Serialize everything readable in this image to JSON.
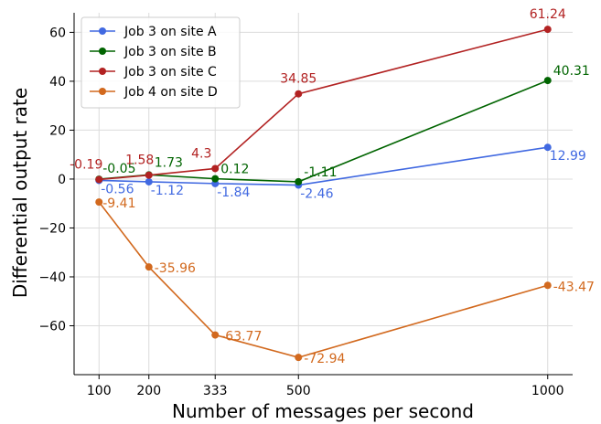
{
  "chart_data": {
    "type": "line",
    "title": "",
    "xlabel": "Number of messages per second",
    "ylabel": "Differential output rate",
    "x": [
      100,
      200,
      333,
      500,
      1000
    ],
    "x_tick_labels": [
      "100",
      "200",
      "333",
      "500",
      "1000"
    ],
    "xlim": [
      50,
      1050
    ],
    "ylim": [
      -80,
      68
    ],
    "y_ticks": [
      -60,
      -40,
      -20,
      0,
      20,
      40,
      60
    ],
    "y_tick_labels": [
      "−60",
      "−40",
      "−20",
      "0",
      "20",
      "40",
      "60"
    ],
    "grid": true,
    "legend_position": "top-left",
    "series": [
      {
        "name": "Job 3 on site A",
        "color": "#4169e1",
        "values": [
          -0.56,
          -1.12,
          -1.84,
          -2.46,
          12.99
        ],
        "labels": [
          "-0.56",
          "-1.12",
          "-1.84",
          "-2.46",
          "12.99"
        ]
      },
      {
        "name": "Job 3 on site B",
        "color": "#006400",
        "values": [
          -0.05,
          1.73,
          0.12,
          -1.11,
          40.31
        ],
        "labels": [
          "-0.05",
          "1.73",
          "0.12",
          "-1.11",
          "40.31"
        ]
      },
      {
        "name": "Job 3 on site C",
        "color": "#b22222",
        "values": [
          -0.19,
          1.58,
          4.3,
          34.85,
          61.24
        ],
        "labels": [
          "-0.19",
          "1.58",
          "4.3",
          "34.85",
          "61.24"
        ]
      },
      {
        "name": "Job 4 on site D",
        "color": "#d2691e",
        "values": [
          -9.41,
          -35.96,
          -63.77,
          -72.94,
          -43.47
        ],
        "labels": [
          "-9.41",
          "-35.96",
          "-63.77",
          "-72.94",
          "-43.47"
        ]
      }
    ]
  }
}
